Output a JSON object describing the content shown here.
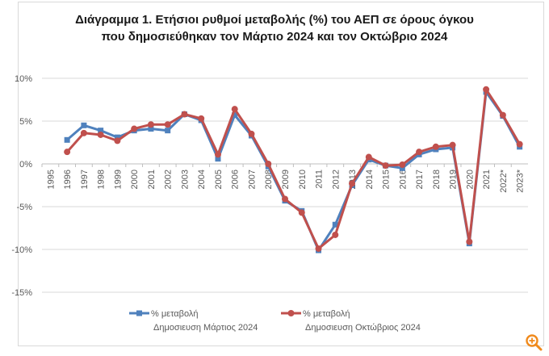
{
  "chart_data": {
    "type": "line",
    "title_lines": [
      "Διάγραμμα 1. Ετήσιοι ρυθμοί μεταβολής (%) του ΑΕΠ σε όρους όγκου",
      "που δημοσιεύθηκαν τον Μάρτιο 2024 και τον Οκτώβριο 2024"
    ],
    "x": [
      "1995",
      "1996",
      "1997",
      "1998",
      "1999",
      "2000",
      "2001",
      "2002",
      "2003",
      "2004",
      "2005",
      "2006",
      "2007",
      "2008",
      "2009",
      "2010",
      "2011",
      "2012",
      "2013",
      "2014",
      "2015",
      "2016",
      "2017",
      "2018",
      "2019",
      "2020",
      "2021",
      "2022*",
      "2023*"
    ],
    "y_ticks": [
      {
        "value": 10,
        "label": "10%"
      },
      {
        "value": 5,
        "label": "5%"
      },
      {
        "value": 0,
        "label": "0%"
      },
      {
        "value": -5,
        "label": "-5%"
      },
      {
        "value": -10,
        "label": "-10%"
      },
      {
        "value": -15,
        "label": "-15%"
      }
    ],
    "ylim": [
      -15,
      10
    ],
    "grid": true,
    "legend_position": "bottom-left",
    "series": [
      {
        "name_line1": "% μεταβολή",
        "name_line2": "Δημοσιευση Μάρτιος 2024",
        "color": "#4f81bd",
        "marker": "square",
        "values": [
          null,
          2.8,
          4.5,
          3.9,
          3.1,
          3.9,
          4.1,
          3.9,
          5.8,
          5.1,
          0.6,
          5.7,
          3.3,
          -0.3,
          -4.3,
          -5.5,
          -10.1,
          -7.1,
          -2.5,
          0.5,
          -0.2,
          -0.5,
          1.1,
          1.7,
          1.9,
          -9.3,
          8.4,
          5.6,
          2.0
        ]
      },
      {
        "name_line1": "% μεταβολή",
        "name_line2": "Δημοσιευση Οκτώβριος 2024",
        "color": "#c0504d",
        "marker": "circle",
        "values": [
          null,
          1.4,
          3.6,
          3.4,
          2.7,
          4.1,
          4.6,
          4.6,
          5.8,
          5.3,
          1.1,
          6.4,
          3.5,
          0.0,
          -4.1,
          -5.7,
          -9.9,
          -8.3,
          -2.3,
          0.8,
          -0.2,
          -0.1,
          1.4,
          2.0,
          2.2,
          -9.1,
          8.7,
          5.7,
          2.3
        ]
      }
    ]
  },
  "watermark": {
    "icon": "zoom-icon",
    "color": "#f08a1c"
  }
}
